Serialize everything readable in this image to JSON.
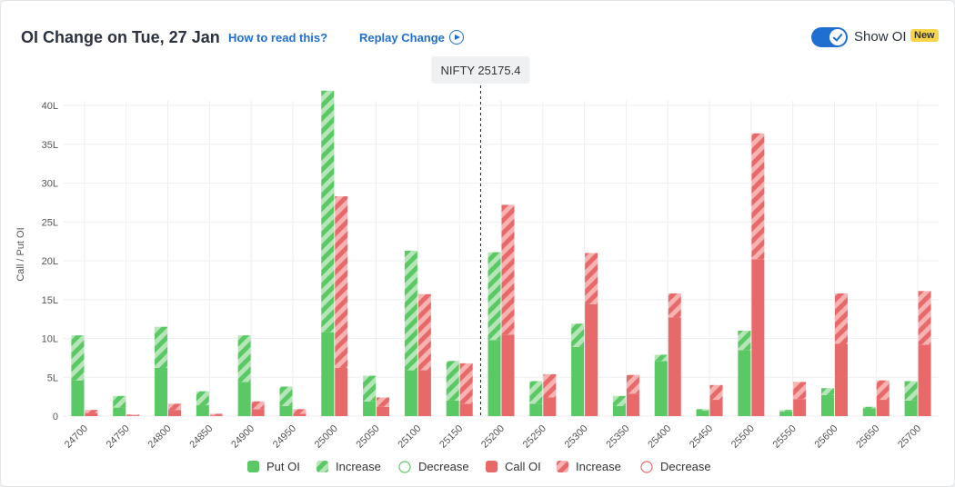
{
  "header": {
    "title": "OI Change on Tue, 27 Jan",
    "how_to_read": "How to read this?",
    "replay": "Replay Change",
    "show_oi": "Show OI",
    "badge": "New"
  },
  "chart_data": {
    "type": "bar",
    "ylabel": "Call / Put OI",
    "ylim": [
      0,
      40
    ],
    "yticks": [
      "0",
      "5L",
      "10L",
      "15L",
      "20L",
      "25L",
      "30L",
      "35L",
      "40L"
    ],
    "spot_label": "NIFTY 25175.4",
    "spot_value": 25175.4,
    "categories": [
      "24700",
      "24750",
      "24800",
      "24850",
      "24900",
      "24950",
      "25000",
      "25050",
      "25100",
      "25150",
      "25200",
      "25250",
      "25300",
      "25350",
      "25400",
      "25450",
      "25500",
      "25550",
      "25600",
      "25650",
      "25700"
    ],
    "series": [
      {
        "name": "Put OI",
        "values": [
          4.6,
          1.1,
          6.2,
          1.4,
          4.4,
          1.3,
          10.8,
          1.9,
          5.9,
          2.0,
          9.8,
          1.6,
          8.9,
          1.3,
          7.1,
          0.7,
          8.5,
          0.6,
          2.7,
          1.0,
          2.0
        ]
      },
      {
        "name": "Increase",
        "values": [
          5.8,
          1.5,
          5.3,
          1.8,
          6.0,
          2.5,
          31.1,
          3.3,
          15.4,
          5.1,
          11.3,
          2.9,
          3.0,
          1.3,
          0.8,
          0.2,
          2.5,
          0.2,
          0.9,
          0.2,
          2.5
        ]
      },
      {
        "name": "Call OI",
        "values": [
          0.4,
          0.1,
          0.8,
          0.1,
          0.9,
          0.3,
          6.2,
          1.2,
          5.9,
          1.6,
          10.5,
          2.4,
          14.4,
          2.9,
          12.7,
          2.1,
          20.2,
          2.2,
          9.3,
          2.1,
          9.2
        ]
      },
      {
        "name": "Increase",
        "values": [
          0.4,
          0.1,
          0.8,
          0.2,
          1.0,
          0.6,
          22.1,
          1.2,
          9.8,
          5.2,
          16.7,
          3.0,
          6.6,
          2.4,
          3.1,
          1.9,
          16.2,
          2.2,
          6.5,
          2.5,
          6.9
        ]
      }
    ],
    "legend": [
      {
        "label": "Put OI",
        "kind": "solid",
        "color": "#5ac965"
      },
      {
        "label": "Increase",
        "kind": "hatch",
        "color": "#5ac965"
      },
      {
        "label": "Decrease",
        "kind": "outline",
        "color": "#5ac965"
      },
      {
        "label": "Call OI",
        "kind": "solid",
        "color": "#e8696a"
      },
      {
        "label": "Increase",
        "kind": "hatch",
        "color": "#e8696a"
      },
      {
        "label": "Decrease",
        "kind": "outline",
        "color": "#e8696a"
      }
    ],
    "colors": {
      "put": "#5ac965",
      "put_light": "#b6e6b8",
      "call": "#e8696a",
      "call_light": "#f6b3b2"
    }
  }
}
